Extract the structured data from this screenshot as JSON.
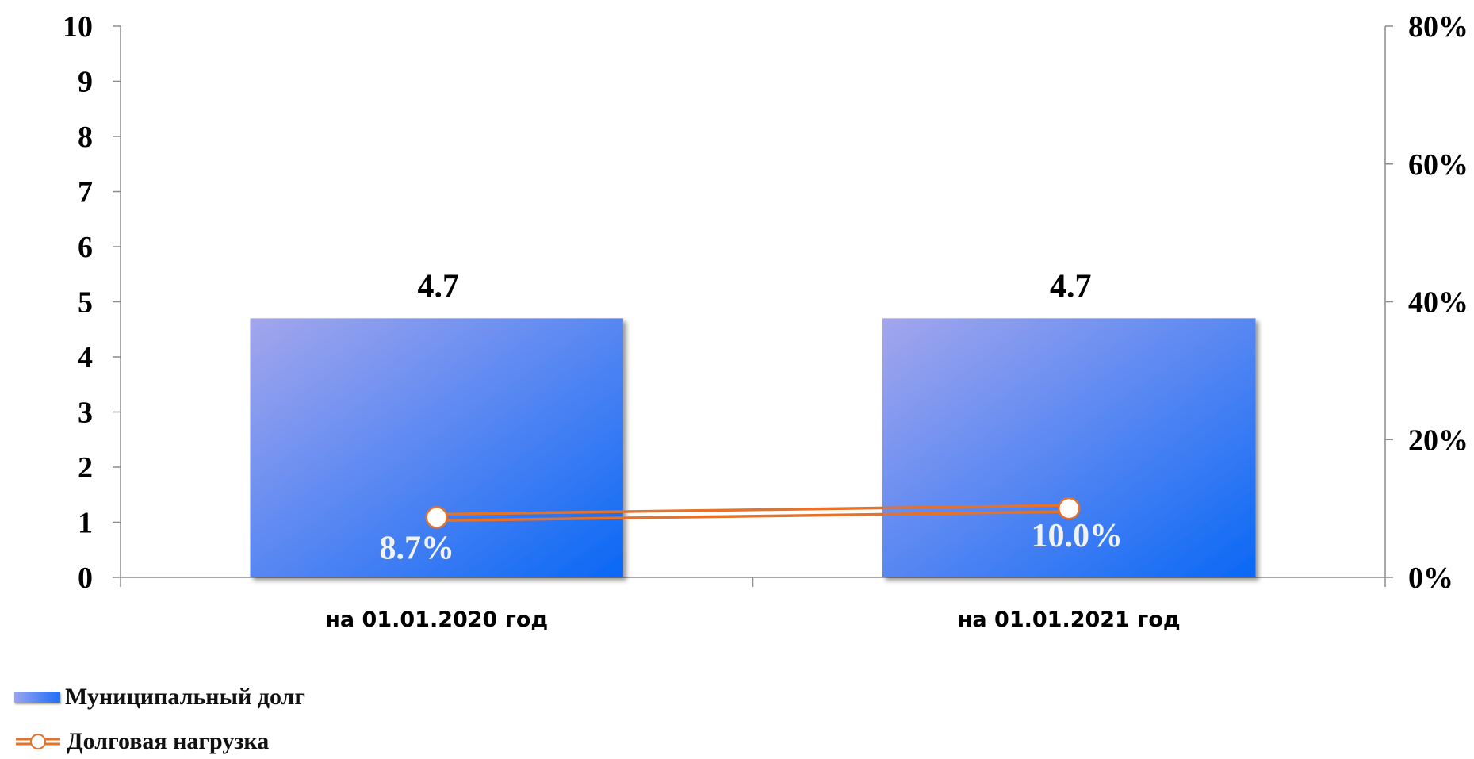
{
  "chart_data": {
    "type": "bar",
    "categories": [
      "на 01.01.2020 год",
      "на 01.01.2021 год"
    ],
    "series": [
      {
        "name": "Муниципальный долг",
        "type": "bar",
        "axis": "left",
        "values": [
          4.7,
          4.7
        ],
        "labels": [
          "4.7",
          "4.7"
        ],
        "color": "#1d6ff6"
      },
      {
        "name": "Долговая нагрузка",
        "type": "line",
        "axis": "right",
        "values": [
          8.7,
          10.0
        ],
        "labels": [
          "8.7%",
          "10.0%"
        ],
        "color": "#e5722a"
      }
    ],
    "left_axis": {
      "ylim": [
        0,
        10
      ],
      "ticks": [
        "0",
        "1",
        "2",
        "3",
        "4",
        "5",
        "6",
        "7",
        "8",
        "9",
        "10"
      ]
    },
    "right_axis": {
      "ylim": [
        0,
        80
      ],
      "ticks": [
        "0%",
        "20%",
        "40%",
        "60%",
        "80%"
      ]
    },
    "legend_position": "bottom-left",
    "grid": false
  }
}
